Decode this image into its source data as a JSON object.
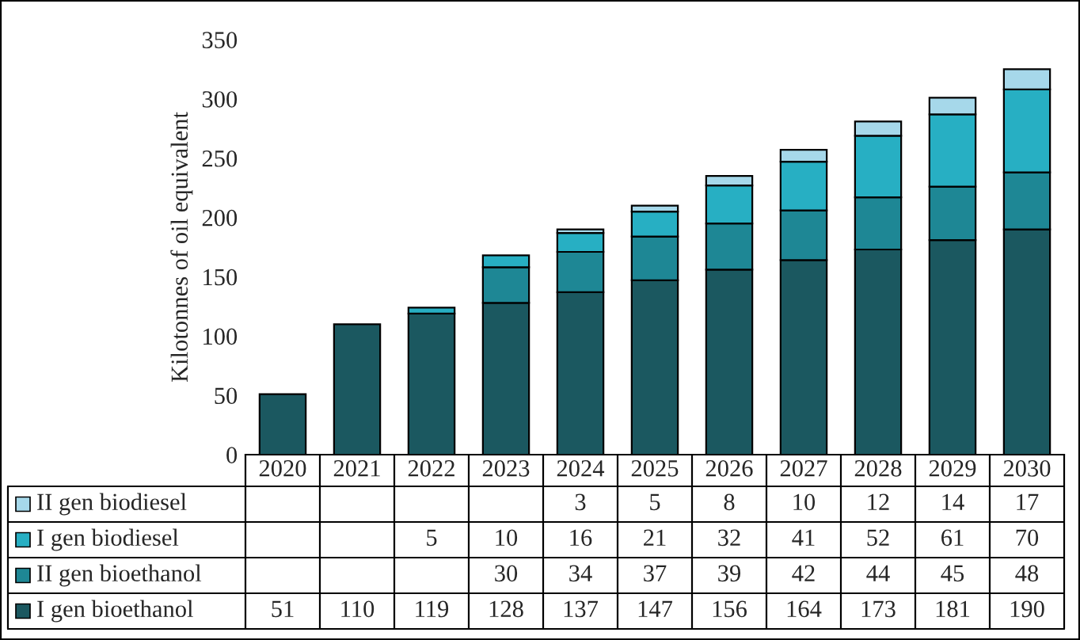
{
  "chart_data": {
    "type": "bar",
    "stacked": true,
    "ylabel": "Kilotonnes of oil equivalent",
    "categories": [
      "2020",
      "2021",
      "2022",
      "2023",
      "2024",
      "2025",
      "2026",
      "2027",
      "2028",
      "2029",
      "2030"
    ],
    "series": [
      {
        "name": "I gen bioethanol",
        "color": "#1b5860",
        "values": [
          51,
          110,
          119,
          128,
          137,
          147,
          156,
          164,
          173,
          181,
          190
        ]
      },
      {
        "name": "II gen bioethanol",
        "color": "#1e8795",
        "values": [
          null,
          null,
          null,
          30,
          34,
          37,
          39,
          42,
          44,
          45,
          48
        ]
      },
      {
        "name": "I gen biodiesel",
        "color": "#27afc3",
        "values": [
          null,
          null,
          5,
          10,
          16,
          21,
          32,
          41,
          52,
          61,
          70
        ]
      },
      {
        "name": "II gen biodiesel",
        "color": "#a6d8ea",
        "values": [
          null,
          null,
          null,
          null,
          3,
          5,
          8,
          10,
          12,
          14,
          17
        ]
      }
    ],
    "ylim": [
      0,
      350
    ],
    "yticks": [
      0,
      50,
      100,
      150,
      200,
      250,
      300,
      350
    ],
    "grid": false,
    "data_labels": true,
    "legend": "bottom"
  }
}
